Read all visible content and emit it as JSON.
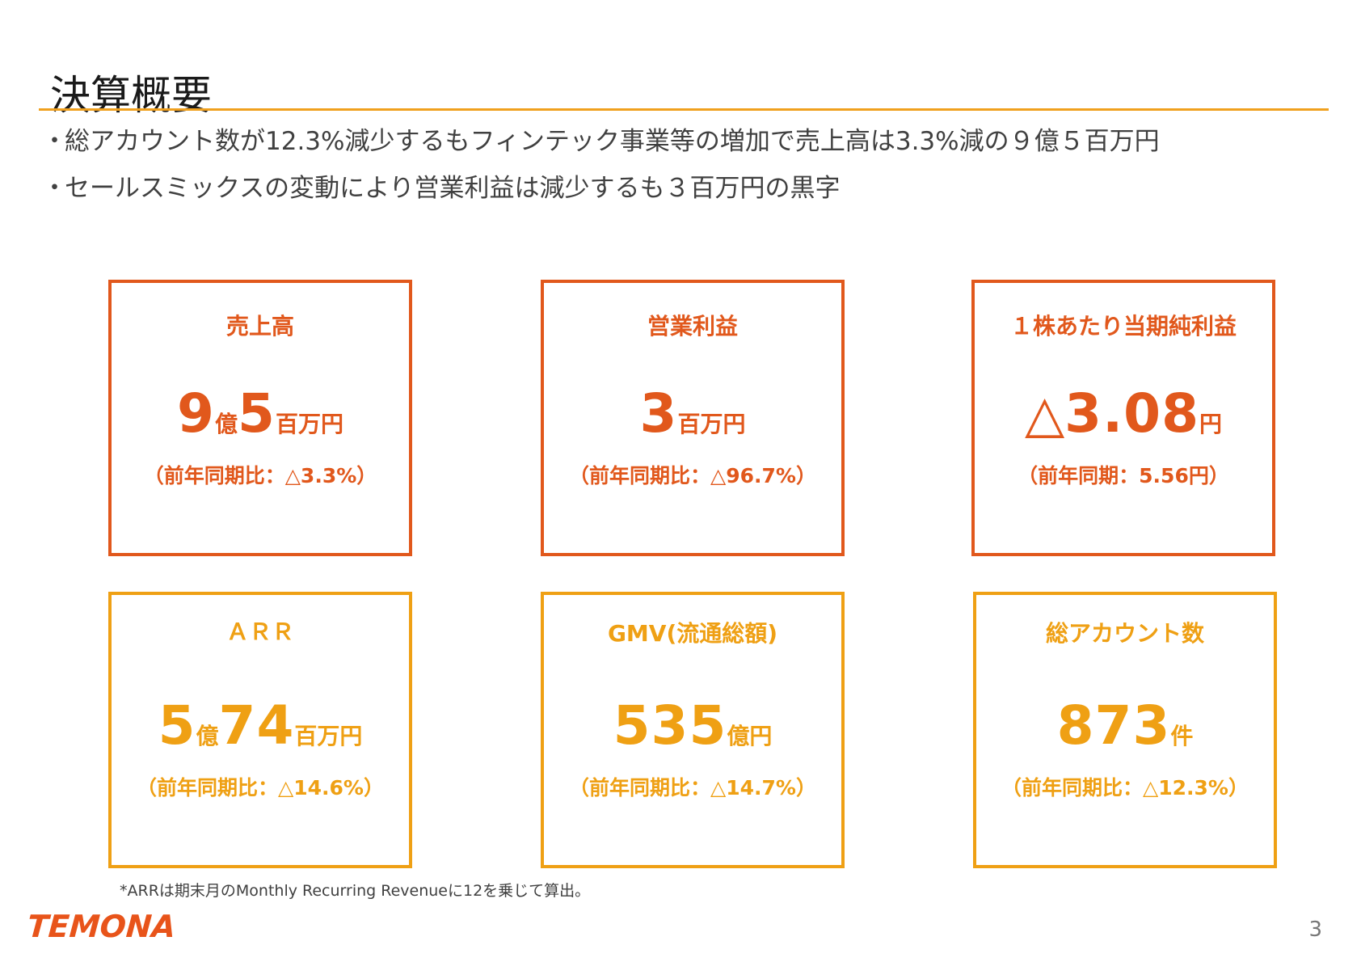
{
  "title": "決算概要",
  "bullets": [
    {
      "marker": "・",
      "text": "総アカウント数が12.3%減少するもフィンテック事業等の増加で売上高は3.3%減の９億５百万円"
    },
    {
      "marker": "・",
      "text": "セールスミックスの変動により営業利益は減少するも３百万円の黒字"
    }
  ],
  "cards": [
    {
      "label": "売上高",
      "value": [
        {
          "text": "9",
          "size": "big"
        },
        {
          "text": "億",
          "size": "small"
        },
        {
          "text": "5",
          "size": "big"
        },
        {
          "text": "百万円",
          "size": "small"
        }
      ],
      "sub": "（前年同期比：△3.3%）"
    },
    {
      "label": "営業利益",
      "value": [
        {
          "text": "3",
          "size": "big"
        },
        {
          "text": "百万円",
          "size": "small"
        }
      ],
      "sub": "（前年同期比：△96.7%）"
    },
    {
      "label": "１株あたり当期純利益",
      "value": [
        {
          "text": "△",
          "size": "tri"
        },
        {
          "text": "3.08",
          "size": "big"
        },
        {
          "text": "円",
          "size": "small"
        }
      ],
      "sub": "（前年同期：5.56円）"
    },
    {
      "label": "ＡＲＲ",
      "value": [
        {
          "text": "5",
          "size": "big"
        },
        {
          "text": "億",
          "size": "small"
        },
        {
          "text": "74",
          "size": "big"
        },
        {
          "text": "百万円",
          "size": "small"
        }
      ],
      "sub": "（前年同期比：△14.6%）"
    },
    {
      "label": "GMV(流通総額)",
      "value": [
        {
          "text": "535",
          "size": "big"
        },
        {
          "text": "億円",
          "size": "small"
        }
      ],
      "sub": "（前年同期比：△14.7%）"
    },
    {
      "label": "総アカウント数",
      "value": [
        {
          "text": "873",
          "size": "big"
        },
        {
          "text": "件",
          "size": "small"
        }
      ],
      "sub": "（前年同期比：△12.3%）"
    }
  ],
  "colors": {
    "accent_rule": "#f0a01e",
    "card_top": "#e1581c",
    "card_bottom": "#efa014",
    "logo": "#e8541a"
  },
  "footnote": "*ARRは期末月のMonthly Recurring Revenueに12を乗じて算出。",
  "logo_text": "TEMONA",
  "page_number": "3"
}
